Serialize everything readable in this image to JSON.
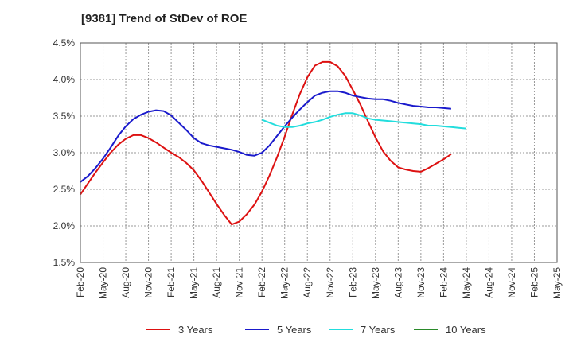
{
  "chart_data": {
    "type": "line",
    "title": "[9381]  Trend of StDev of ROE",
    "xlabel": "",
    "ylabel": "",
    "ylim": [
      0.015,
      0.045
    ],
    "y_ticks": [
      0.015,
      0.02,
      0.025,
      0.03,
      0.035,
      0.04,
      0.045
    ],
    "y_tick_labels": [
      "1.5%",
      "2.0%",
      "2.5%",
      "3.0%",
      "3.5%",
      "4.0%",
      "4.5%"
    ],
    "x_tick_labels": [
      "Feb-20",
      "May-20",
      "Aug-20",
      "Nov-20",
      "Feb-21",
      "May-21",
      "Aug-21",
      "Nov-21",
      "Feb-22",
      "May-22",
      "Aug-22",
      "Nov-22",
      "Feb-23",
      "May-23",
      "Aug-23",
      "Nov-23",
      "Feb-24",
      "May-24",
      "Aug-24",
      "Nov-24",
      "Feb-25",
      "May-25"
    ],
    "grid": true,
    "legend_position": "bottom",
    "series": [
      {
        "name": "3 Years",
        "color": "#dd1111",
        "start_index": 0,
        "values": [
          0.0243,
          0.0258,
          0.0273,
          0.0287,
          0.03,
          0.0311,
          0.0319,
          0.0324,
          0.0324,
          0.032,
          0.0314,
          0.0307,
          0.03,
          0.0294,
          0.0286,
          0.0276,
          0.0262,
          0.0246,
          0.023,
          0.0215,
          0.0202,
          0.0206,
          0.0216,
          0.0229,
          0.0247,
          0.0269,
          0.0294,
          0.0322,
          0.0352,
          0.038,
          0.0403,
          0.0419,
          0.0424,
          0.0424,
          0.0418,
          0.0405,
          0.0386,
          0.0366,
          0.0343,
          0.0321,
          0.0302,
          0.0289,
          0.028,
          0.0277,
          0.0275,
          0.0274,
          0.0279,
          0.0285,
          0.0291,
          0.0298
        ]
      },
      {
        "name": "5 Years",
        "color": "#1a1acc",
        "start_index": 0,
        "values": [
          0.026,
          0.0268,
          0.0279,
          0.0292,
          0.0307,
          0.0323,
          0.0336,
          0.0346,
          0.0352,
          0.0356,
          0.0358,
          0.0357,
          0.0351,
          0.0341,
          0.0331,
          0.032,
          0.0313,
          0.031,
          0.0308,
          0.0306,
          0.0304,
          0.0301,
          0.0297,
          0.0296,
          0.03,
          0.031,
          0.0323,
          0.0336,
          0.0348,
          0.0359,
          0.0369,
          0.0378,
          0.0382,
          0.0384,
          0.0384,
          0.0382,
          0.0378,
          0.0376,
          0.0374,
          0.0373,
          0.0373,
          0.0371,
          0.0368,
          0.0366,
          0.0364,
          0.0363,
          0.0362,
          0.0362,
          0.0361,
          0.036
        ]
      },
      {
        "name": "7 Years",
        "color": "#22dddd",
        "start_index": 24,
        "values": [
          0.0345,
          0.0341,
          0.0337,
          0.0335,
          0.0335,
          0.0337,
          0.034,
          0.0342,
          0.0345,
          0.0349,
          0.0352,
          0.0354,
          0.0354,
          0.0351,
          0.0347,
          0.0345,
          0.0344,
          0.0343,
          0.0342,
          0.0341,
          0.034,
          0.0339,
          0.0337,
          0.0337,
          0.0336,
          0.0335,
          0.0334,
          0.0333
        ]
      },
      {
        "name": "10 Years",
        "color": "#2a8a2a",
        "start_index": 0,
        "values": []
      }
    ]
  }
}
